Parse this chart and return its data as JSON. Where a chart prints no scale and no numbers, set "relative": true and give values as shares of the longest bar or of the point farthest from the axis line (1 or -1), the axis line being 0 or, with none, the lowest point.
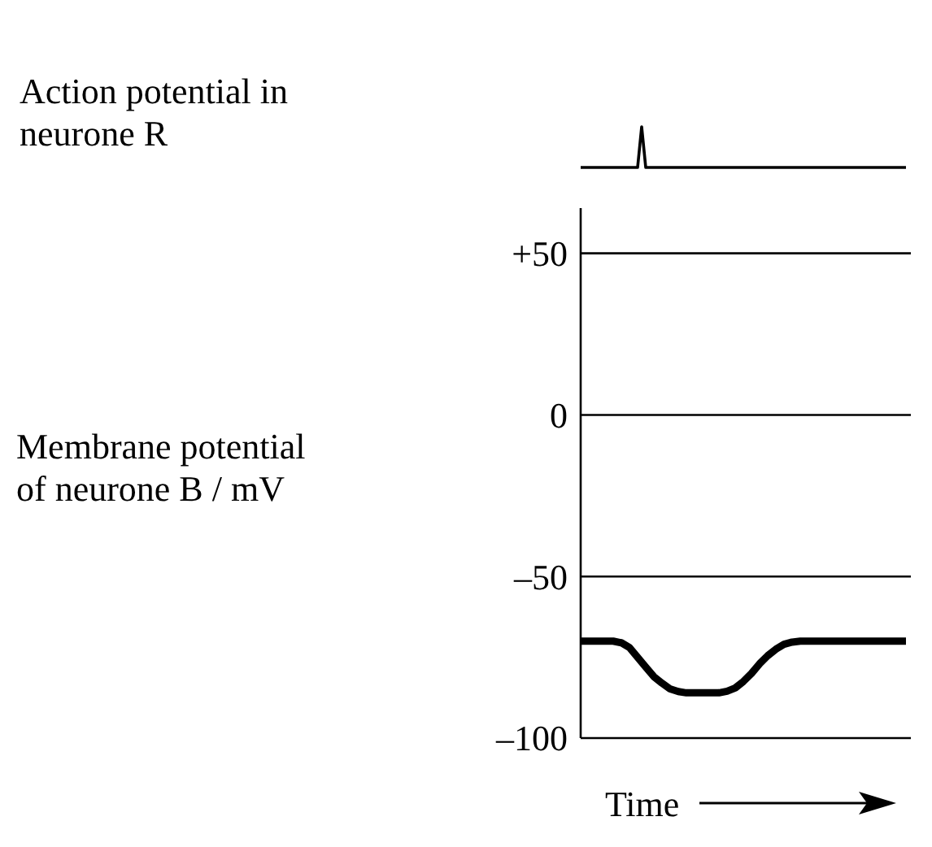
{
  "chart_data": [
    {
      "type": "line",
      "ylabel": "Action potential in neurone R",
      "relative": true,
      "categories": [
        null,
        null,
        null,
        null,
        null,
        null,
        null,
        null,
        null,
        null,
        null,
        null,
        null,
        null,
        null,
        null,
        null,
        null,
        null,
        null,
        null,
        null,
        null,
        null,
        null,
        null,
        null,
        null,
        null,
        null,
        null,
        null,
        null,
        null,
        null,
        null,
        null,
        null,
        null,
        null,
        null,
        null,
        null,
        null,
        null,
        null,
        null,
        null,
        null,
        null,
        null,
        null,
        null,
        null,
        null,
        null,
        null,
        null,
        null,
        null,
        null,
        null,
        null,
        null,
        null,
        null,
        null,
        null,
        null,
        null,
        null,
        null,
        null,
        null,
        null,
        null,
        null,
        null,
        null,
        null,
        null
      ],
      "values": [
        0,
        0,
        0,
        0,
        0,
        0,
        0,
        0,
        0,
        0,
        0,
        0,
        0,
        0,
        0,
        1,
        0,
        0,
        0,
        0,
        0,
        0,
        0,
        0,
        0,
        0,
        0,
        0,
        0,
        0,
        0,
        0,
        0,
        0,
        0,
        0,
        0,
        0,
        0,
        0,
        0,
        0,
        0,
        0,
        0,
        0,
        0,
        0,
        0,
        0,
        0,
        0,
        0,
        0,
        0,
        0,
        0,
        0,
        0,
        0,
        0,
        0,
        0,
        0,
        0,
        0,
        0,
        0,
        0,
        0,
        0,
        0,
        0,
        0,
        0,
        0,
        0,
        0,
        0,
        0,
        0
      ],
      "color": "#000000"
    },
    {
      "type": "line",
      "ylabel": "Membrane potential of neurone B / mV",
      "xlabel": "Time",
      "categories": [
        null,
        null,
        null,
        null,
        null,
        null,
        null,
        null,
        null,
        null,
        null,
        null,
        null,
        null,
        null,
        null,
        null,
        null,
        null,
        null,
        null,
        null,
        null,
        null,
        null,
        null,
        null,
        null,
        null,
        null,
        null,
        null,
        null,
        null,
        null,
        null,
        null,
        null,
        null,
        null,
        null
      ],
      "series": [
        {
          "color": "#000000",
          "values": [
            -70,
            -70,
            -70,
            -70,
            -70,
            -70.5,
            -72,
            -75,
            -78,
            -81,
            -83,
            -84.8,
            -85.6,
            -86,
            -86,
            -86,
            -86,
            -86,
            -85.5,
            -84.5,
            -82.5,
            -80,
            -77,
            -74.5,
            -72.5,
            -71,
            -70.3,
            -70,
            -70,
            -70,
            -70,
            -70,
            -70,
            -70,
            -70,
            -70,
            -70,
            -70,
            -70,
            -70,
            -70
          ]
        }
      ],
      "ylim": [
        -100,
        64
      ],
      "yticks": [
        {
          "value": 50,
          "label": "+50"
        },
        0,
        {
          "value": -50,
          "label": "–50"
        },
        {
          "value": -100,
          "label": "–100"
        }
      ],
      "grid": "y"
    }
  ]
}
